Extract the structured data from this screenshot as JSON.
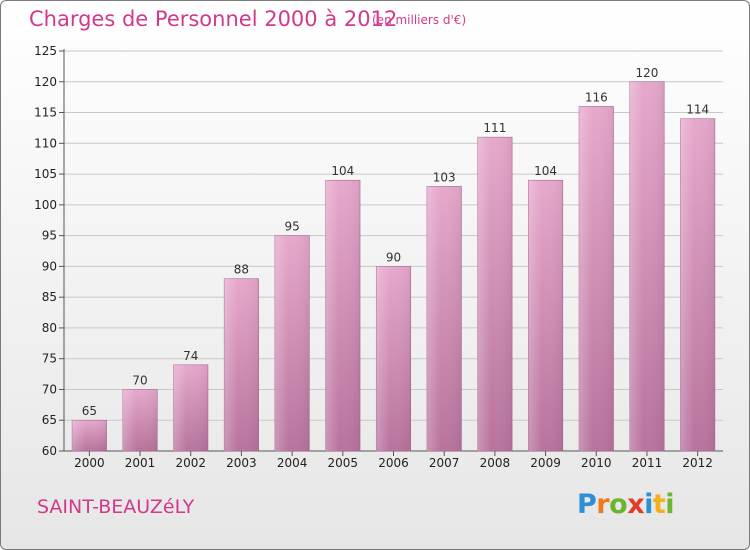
{
  "header": {
    "title": "Charges de Personnel 2000 à 2012",
    "subtitle": "(en milliers d'€)"
  },
  "footer": {
    "commune": "SAINT-BEAUZéLY",
    "logo_letters": [
      {
        "ch": "P",
        "color": "#2e8fd6"
      },
      {
        "ch": "r",
        "color": "#f07a1a"
      },
      {
        "ch": "o",
        "color": "#6cb52d"
      },
      {
        "ch": "x",
        "color": "#e23c2a"
      },
      {
        "ch": "i",
        "color": "#2e8fd6"
      },
      {
        "ch": "t",
        "color": "#f2b01a"
      },
      {
        "ch": "i",
        "color": "#6cb52d"
      }
    ]
  },
  "colors": {
    "accent": "#d3398a",
    "bar_top": "#e6a8cc",
    "bar_bottom": "#b8739d",
    "grid": "#c8c8c8"
  },
  "chart_data": {
    "type": "bar",
    "title": "Charges de Personnel 2000 à 2012",
    "subtitle": "(en milliers d'€)",
    "categories": [
      "2000",
      "2001",
      "2002",
      "2003",
      "2004",
      "2005",
      "2006",
      "2007",
      "2008",
      "2009",
      "2010",
      "2011",
      "2012"
    ],
    "values": [
      65,
      70,
      74,
      88,
      95,
      104,
      90,
      103,
      111,
      104,
      116,
      120,
      114
    ],
    "xlabel": "",
    "ylabel": "",
    "ylim": [
      60,
      125
    ],
    "yticks": [
      60,
      65,
      70,
      75,
      80,
      85,
      90,
      95,
      100,
      105,
      110,
      115,
      120,
      125
    ],
    "grid": true,
    "data_labels": true
  }
}
